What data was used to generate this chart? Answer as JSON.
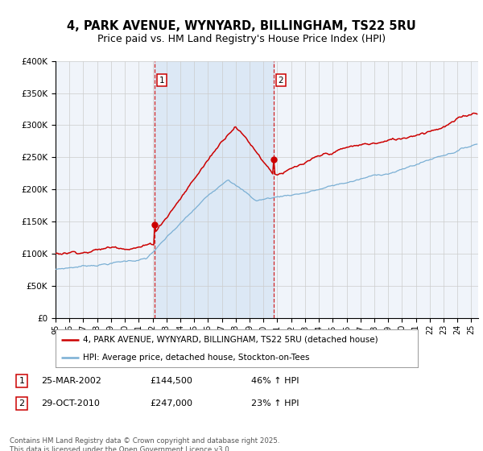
{
  "title": "4, PARK AVENUE, WYNYARD, BILLINGHAM, TS22 5RU",
  "subtitle": "Price paid vs. HM Land Registry's House Price Index (HPI)",
  "legend_line1": "4, PARK AVENUE, WYNYARD, BILLINGHAM, TS22 5RU (detached house)",
  "legend_line2": "HPI: Average price, detached house, Stockton-on-Tees",
  "footnote": "Contains HM Land Registry data © Crown copyright and database right 2025.\nThis data is licensed under the Open Government Licence v3.0.",
  "sale1_date": "25-MAR-2002",
  "sale1_price": "£144,500",
  "sale1_hpi": "46% ↑ HPI",
  "sale2_date": "29-OCT-2010",
  "sale2_price": "£247,000",
  "sale2_hpi": "23% ↑ HPI",
  "hpi_color": "#7aafd4",
  "price_color": "#cc0000",
  "shade_color": "#dce8f5",
  "vline_color": "#cc0000",
  "grid_color": "#cccccc",
  "bg_color": "#f0f4fa",
  "plot_bg": "#ffffff",
  "ylim": [
    0,
    400000
  ],
  "yticks": [
    0,
    50000,
    100000,
    150000,
    200000,
    250000,
    300000,
    350000,
    400000
  ],
  "title_fontsize": 10.5,
  "subtitle_fontsize": 9
}
